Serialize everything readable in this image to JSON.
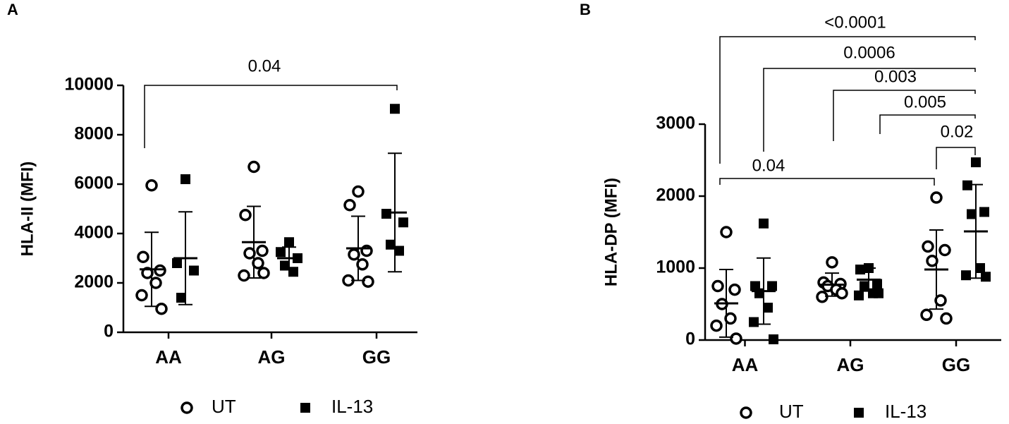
{
  "chart_data": [
    {
      "type": "dot",
      "panel": "A",
      "y_label": "HLA-II (MFI)",
      "categories": [
        "AA",
        "AG",
        "GG"
      ],
      "ylim": [
        0,
        10000
      ],
      "yticks": [
        0,
        2000,
        4000,
        6000,
        8000,
        10000
      ],
      "legend": "bottom",
      "series": [
        {
          "name": "UT",
          "marker": "circle",
          "color": "#000000",
          "values": [
            [
              5950,
              3050,
              2500,
              2400,
              2000,
              1500,
              950
            ],
            [
              6700,
              4750,
              3300,
              3200,
              2800,
              2300,
              2400
            ],
            [
              5700,
              5150,
              3300,
              3150,
              2750,
              2100,
              2050
            ]
          ],
          "mean": [
            2550,
            3650,
            3400
          ],
          "sd": [
            1500,
            1450,
            1300
          ]
        },
        {
          "name": "IL-13",
          "marker": "square",
          "color": "#000000",
          "values": [
            [
              6200,
              2800,
              2500,
              1400
            ],
            [
              3650,
              3250,
              3000,
              2700,
              2450
            ],
            [
              9050,
              4800,
              4450,
              3550,
              3300
            ]
          ],
          "mean": [
            3000,
            3000,
            4850
          ],
          "sd": [
            1880,
            450,
            2400
          ]
        }
      ],
      "comparisons": [
        "0.04"
      ]
    },
    {
      "type": "dot",
      "panel": "B",
      "y_label": "HLA-DP (MFI)",
      "categories": [
        "AA",
        "AG",
        "GG"
      ],
      "ylim": [
        0,
        3000
      ],
      "yticks": [
        0,
        1000,
        2000,
        3000
      ],
      "legend": "bottom",
      "series": [
        {
          "name": "UT",
          "marker": "circle",
          "color": "#000000",
          "values": [
            [
              1500,
              750,
              700,
              500,
              300,
              200,
              20
            ],
            [
              1080,
              800,
              780,
              750,
              700,
              600,
              650
            ],
            [
              1980,
              1300,
              1250,
              1100,
              550,
              350,
              300
            ]
          ],
          "mean": [
            510,
            770,
            980
          ],
          "sd": [
            470,
            160,
            550
          ]
        },
        {
          "name": "IL-13",
          "marker": "square",
          "color": "#000000",
          "values": [
            [
              1620,
              750,
              750,
              650,
              450,
              250,
              10
            ],
            [
              1000,
              980,
              780,
              750,
              650,
              620,
              650
            ],
            [
              2470,
              2150,
              1780,
              1750,
              1000,
              900,
              880
            ]
          ],
          "mean": [
            680,
            840,
            1510
          ],
          "sd": [
            460,
            160,
            650
          ]
        }
      ],
      "comparisons": [
        "<0.0001",
        "0.0006",
        "0.003",
        "0.005",
        "0.02",
        "0.04"
      ]
    }
  ]
}
